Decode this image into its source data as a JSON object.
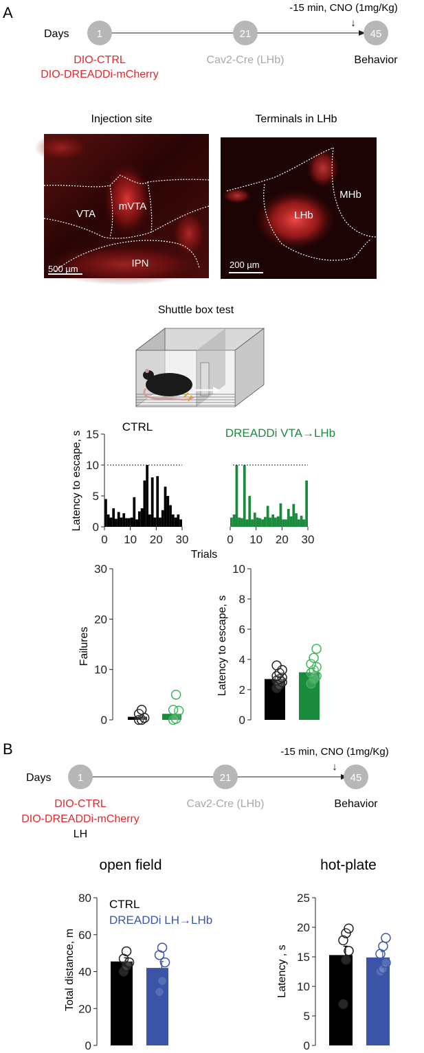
{
  "panel_a": {
    "label": "A",
    "timeline": {
      "days_label": "Days",
      "nodes": [
        "1",
        "21",
        "45"
      ],
      "left_lines": [
        "DIO-CTRL",
        "DIO-DREADDi-mCherry"
      ],
      "mid_label": "Cav2-Cre (LHb)",
      "right_label": "Behavior",
      "cno_label": "-15 min, CNO (1mg/Kg)",
      "arrow_glyph": "↓"
    },
    "images": {
      "injection_title": "Injection site",
      "injection_regions": [
        "VTA",
        "mVTA",
        "IPN"
      ],
      "injection_scale": "500 µm",
      "terminals_title": "Terminals in LHb",
      "terminals_regions": [
        "LHb",
        "MHb"
      ],
      "terminals_scale": "200 µm"
    },
    "shuttle_title": "Shuttle box test",
    "trials_xlabel": "Trials",
    "trials_ylabel": "Latency to escape, s",
    "ctrl_title": "CTRL",
    "dreadd_title": "DREADDi VTA→LHb",
    "failures_ylabel": "Failures",
    "latency_ylabel": "Latency to escape, s"
  },
  "panel_b": {
    "label": "B",
    "timeline": {
      "days_label": "Days",
      "nodes": [
        "1",
        "21",
        "45"
      ],
      "left_lines": [
        "DIO-CTRL",
        "DIO-DREADDi-mCherry"
      ],
      "left_sub": "LH",
      "mid_label": "Cav2-Cre (LHb)",
      "right_label": "Behavior",
      "cno_label": "-15 min, CNO (1mg/Kg)",
      "arrow_glyph": "↓"
    },
    "openfield_title": "open field",
    "hotplate_title": "hot-plate",
    "openfield_ylabel": "Total distance, m",
    "hotplate_ylabel": "Latency , s",
    "legend_ctrl": "CTRL",
    "legend_dreadd": "DREADDi LH→LHb"
  },
  "colors": {
    "ctrl": "#000000",
    "green": "#1a8a3c",
    "green_light": "#3cb55a",
    "blue": "#3a55a8",
    "red": "#e5262a",
    "grey": "#a9a9a9"
  },
  "chart_data": [
    {
      "type": "bar",
      "name": "ctrl-trials",
      "xlabel": "Trials",
      "ylabel": "Latency to escape, s",
      "xlim": [
        0,
        30
      ],
      "ylim": [
        0,
        15
      ],
      "xticks": [
        0,
        10,
        20,
        30
      ],
      "yticks": [
        0,
        5,
        10,
        15
      ],
      "threshold": 10,
      "values": [
        4.5,
        2,
        1.5,
        3,
        1.3,
        2.4,
        1.5,
        2.2,
        1.4,
        1.4,
        1.5,
        4.8,
        1.2,
        2.5,
        3,
        7.5,
        10,
        2,
        8,
        1.5,
        8.2,
        1.5,
        2.7,
        6.5,
        5,
        3.5,
        2,
        1.5,
        2,
        1.2
      ]
    },
    {
      "type": "bar",
      "name": "dreadd-trials",
      "xlabel": "Trials",
      "xlim": [
        0,
        30
      ],
      "ylim": [
        0,
        15
      ],
      "xticks": [
        0,
        10,
        20,
        30
      ],
      "threshold": 10,
      "values": [
        1.5,
        2,
        10,
        1.5,
        1.4,
        10,
        1.2,
        5,
        1.2,
        2.3,
        1.5,
        1.4,
        1.2,
        1.6,
        3.4,
        1.5,
        2,
        1.5,
        1.7,
        3.8,
        1.2,
        1.2,
        2.9,
        1.7,
        3.7,
        2.2,
        1.2,
        1.8,
        1.2,
        7.5
      ]
    },
    {
      "type": "bar",
      "name": "failures",
      "ylabel": "Failures",
      "ylim": [
        0,
        30
      ],
      "yticks": [
        0,
        10,
        20,
        30
      ],
      "series": [
        {
          "name": "CTRL",
          "mean": 0.6,
          "points": [
            0,
            0,
            0.4,
            1.2,
            2
          ]
        },
        {
          "name": "DREADDi VTA→LHb",
          "mean": 1.2,
          "points": [
            0,
            0.2,
            1.8,
            2,
            5
          ]
        }
      ]
    },
    {
      "type": "bar",
      "name": "escape-latency",
      "ylabel": "Latency to escape, s",
      "ylim": [
        0,
        10
      ],
      "yticks": [
        0,
        2,
        4,
        6,
        8,
        10
      ],
      "series": [
        {
          "name": "CTRL",
          "mean": 2.7,
          "sem": 0.18,
          "points": [
            2.1,
            2.3,
            2.5,
            2.6,
            2.7,
            2.8,
            2.9,
            3.1,
            3.3,
            3.6
          ]
        },
        {
          "name": "DREADDi VTA→LHb",
          "mean": 3.15,
          "sem": 0.25,
          "points": [
            2.4,
            2.7,
            2.9,
            3.1,
            3.3,
            3.5,
            3.7,
            4.1,
            4.7
          ]
        }
      ]
    },
    {
      "type": "bar",
      "name": "open-field",
      "ylabel": "Total distance, m",
      "ylim": [
        0,
        80
      ],
      "yticks": [
        0,
        20,
        40,
        60,
        80
      ],
      "series": [
        {
          "name": "CTRL",
          "mean": 45.5,
          "sem": 2,
          "points": [
            40,
            43,
            45,
            47,
            51
          ]
        },
        {
          "name": "DREADDi LH→LHb",
          "mean": 42,
          "sem": 3.5,
          "points": [
            29,
            35,
            45,
            49,
            53
          ]
        }
      ]
    },
    {
      "type": "bar",
      "name": "hot-plate",
      "ylabel": "Latency , s",
      "ylim": [
        0,
        25
      ],
      "yticks": [
        0,
        5,
        10,
        15,
        20,
        25
      ],
      "series": [
        {
          "name": "CTRL",
          "mean": 15.3,
          "sem": 1.5,
          "points": [
            7,
            14.5,
            16,
            17.8,
            19,
            19.8
          ]
        },
        {
          "name": "DREADDi LH→LHb",
          "mean": 14.9,
          "sem": 1,
          "points": [
            12.5,
            13,
            14,
            15.5,
            16.8,
            18.2
          ]
        }
      ]
    }
  ]
}
